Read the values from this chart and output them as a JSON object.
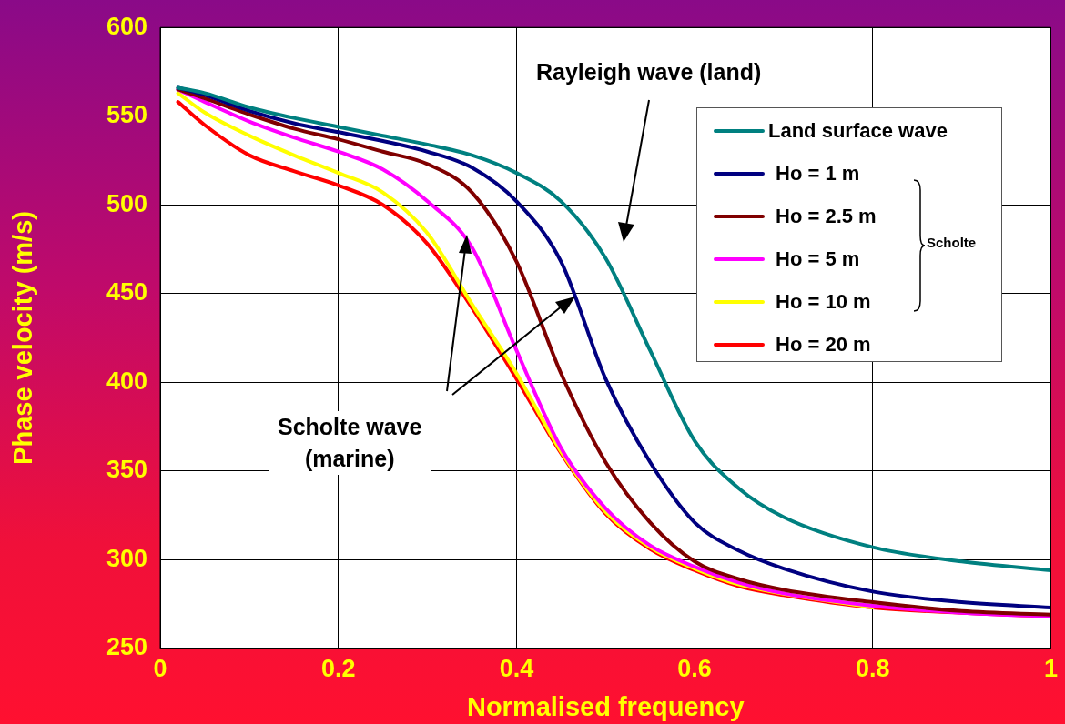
{
  "chart_data": {
    "type": "line",
    "xlabel": "Normalised frequency",
    "ylabel": "Phase velocity (m/s)",
    "x": [
      0.02,
      0.05,
      0.1,
      0.15,
      0.2,
      0.25,
      0.3,
      0.35,
      0.4,
      0.45,
      0.5,
      0.55,
      0.6,
      0.65,
      0.7,
      0.8,
      0.9,
      1.0
    ],
    "series": [
      {
        "name": "Land surface wave",
        "color": "#008080",
        "values": [
          566,
          563,
          555,
          549,
          544,
          539,
          534,
          528,
          518,
          502,
          470,
          418,
          367,
          340,
          324,
          307,
          299,
          294
        ]
      },
      {
        "name": "Ho = 1 m",
        "color": "#000080",
        "values": [
          566,
          562,
          553,
          546,
          541,
          536,
          530,
          521,
          502,
          468,
          402,
          355,
          321,
          305,
          295,
          282,
          276,
          273
        ]
      },
      {
        "name": "Ho = 2.5 m",
        "color": "#800000",
        "values": [
          565,
          560,
          551,
          543,
          537,
          530,
          523,
          507,
          468,
          405,
          355,
          321,
          299,
          289,
          283,
          276,
          271,
          269
        ]
      },
      {
        "name": "Ho = 5 m",
        "color": "#ff00ff",
        "values": [
          565,
          558,
          547,
          538,
          530,
          520,
          502,
          476,
          418,
          363,
          329,
          308,
          296,
          287,
          281,
          274,
          270,
          268
        ]
      },
      {
        "name": "Ho = 10 m",
        "color": "#ffff00",
        "values": [
          563,
          552,
          539,
          528,
          518,
          507,
          484,
          444,
          405,
          361,
          327,
          307,
          295,
          286,
          null,
          273,
          null,
          null
        ]
      },
      {
        "name": "Ho = 20 m",
        "color": "#ff0000",
        "values": [
          558,
          545,
          528,
          519,
          511,
          500,
          478,
          442,
          402,
          360,
          326,
          306,
          294,
          285,
          280,
          273,
          270,
          268
        ]
      }
    ],
    "xlim": [
      0,
      1
    ],
    "xticks": [
      0,
      0.2,
      0.4,
      0.6,
      0.8,
      1
    ],
    "ylim": [
      250,
      600
    ],
    "yticks": [
      250,
      300,
      350,
      400,
      450,
      500,
      550,
      600
    ],
    "grid": true,
    "legend": "top right",
    "marker": "none",
    "line_style": "solid",
    "annotations": [
      "Rayleigh wave (land)",
      "Scholte wave\n(marine)",
      "Scholte"
    ]
  }
}
